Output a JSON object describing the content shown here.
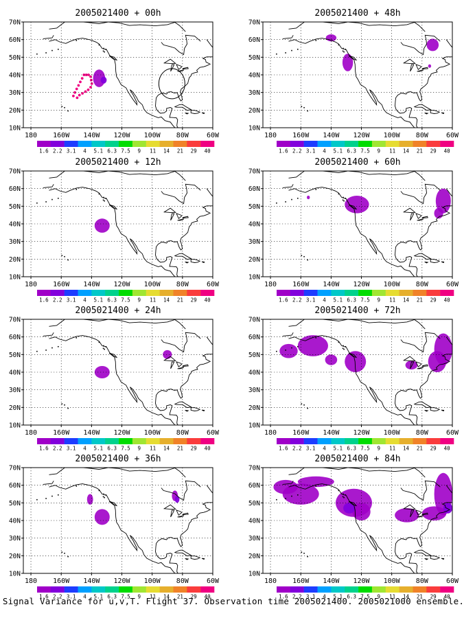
{
  "caption": "Signal Variance for u,v,T. Flight 37. Observation time 2005021400. 2005021000 ensemble.",
  "map": {
    "lat_labels": [
      "70N",
      "60N",
      "50N",
      "40N",
      "30N",
      "20N",
      "10N"
    ],
    "lon_labels": [
      "180",
      "160W",
      "140W",
      "120W",
      "100W",
      "80W",
      "60W"
    ],
    "lat_range": [
      10,
      70
    ],
    "lon_range": [
      -185,
      -60
    ],
    "grid": "dotted"
  },
  "colorbar": {
    "levels": [
      "1.6",
      "2.2",
      "3.1",
      "4",
      "5.1",
      "6.3",
      "7.5",
      "9",
      "11",
      "14",
      "21",
      "29",
      "40"
    ],
    "colors": [
      "#a000c8",
      "#8200dc",
      "#1e3cff",
      "#00a0ff",
      "#00c8c8",
      "#00d28c",
      "#00dc00",
      "#a0e632",
      "#e6dc32",
      "#e6af2d",
      "#f08228",
      "#fa3c3c",
      "#f00082"
    ]
  },
  "panels": [
    {
      "title": "2005021400 + 00h"
    },
    {
      "title": "2005021400 + 48h"
    },
    {
      "title": "2005021400 + 12h"
    },
    {
      "title": "2005021400 + 60h"
    },
    {
      "title": "2005021400 + 24h"
    },
    {
      "title": "2005021400 + 72h"
    },
    {
      "title": "2005021400 + 36h"
    },
    {
      "title": "2005021400 + 84h"
    }
  ]
}
